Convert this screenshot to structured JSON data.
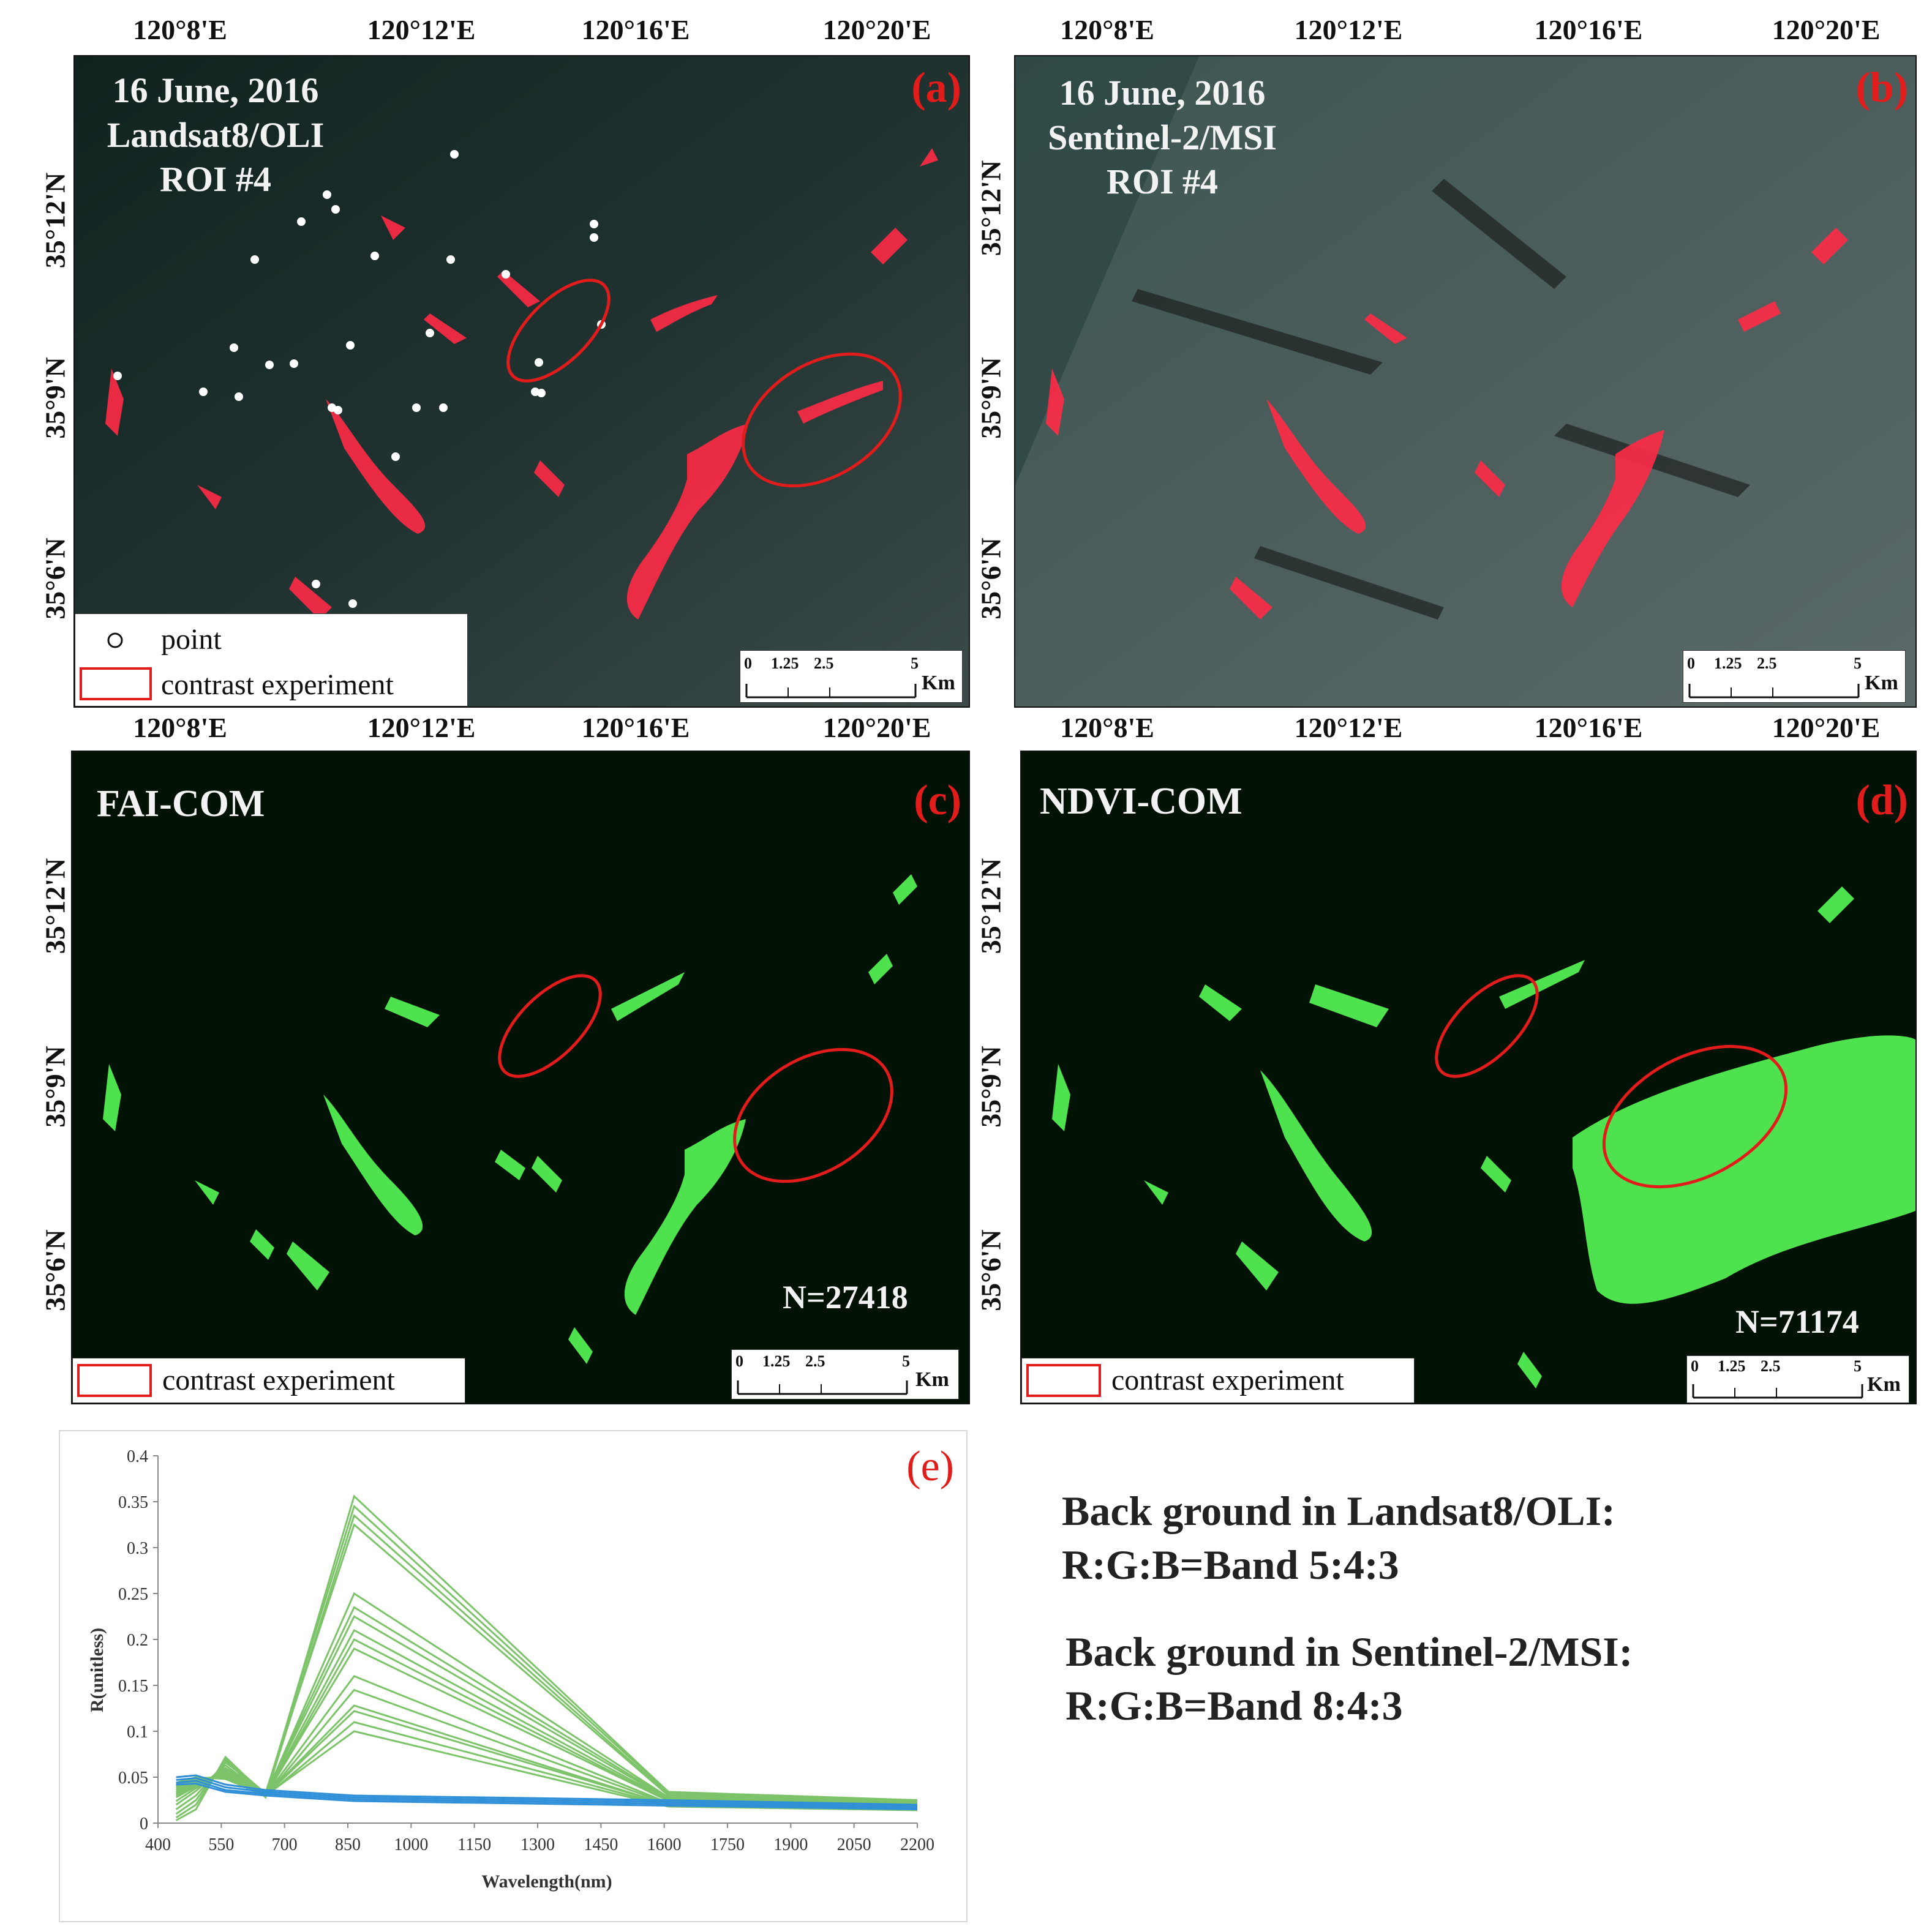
{
  "axes": {
    "lon_labels": [
      "120°8'E",
      "120°12'E",
      "120°16'E",
      "120°20'E"
    ],
    "lat_labels": [
      "35°12'N",
      "35°9'N",
      "35°6'N"
    ]
  },
  "panel_a": {
    "label": "(a)",
    "lines": [
      "16 June, 2016",
      "Landsat8/OLI",
      "ROI #4"
    ],
    "legend_point": "point",
    "legend_contrast": "contrast experiment"
  },
  "panel_b": {
    "label": "(b)",
    "lines": [
      "16 June, 2016",
      "Sentinel-2/MSI",
      "ROI #4"
    ]
  },
  "panel_c": {
    "label": "(c)",
    "title": "FAI-COM",
    "count": "N=27418",
    "legend_contrast": "contrast experiment"
  },
  "panel_d": {
    "label": "(d)",
    "title": "NDVI-COM",
    "count": "N=71174",
    "legend_contrast": "contrast experiment"
  },
  "scalebar": {
    "ticks": [
      "0",
      "1.25",
      "2.5",
      "5"
    ],
    "unit": "Km"
  },
  "colors": {
    "algae_red": "#ff2a46",
    "algae_green": "#4fe24f",
    "ellipse": "#e21b1b",
    "series_green": "#7cc36a",
    "series_blue": "#2f8fd8"
  },
  "chart_data": {
    "type": "line",
    "panel_label": "(e)",
    "xlabel": "Wavelength(nm)",
    "ylabel": "R(unitless)",
    "xlim": [
      400,
      2200
    ],
    "ylim": [
      0,
      0.4
    ],
    "x_ticks": [
      "400",
      "550",
      "700",
      "850",
      "1000",
      "1150",
      "1300",
      "1450",
      "1600",
      "1750",
      "1900",
      "2050",
      "2200"
    ],
    "y_ticks": [
      "0",
      "0.05",
      "0.1",
      "0.15",
      "0.2",
      "0.25",
      "0.3",
      "0.35",
      "0.4"
    ],
    "x": [
      443,
      490,
      560,
      655,
      865,
      1610,
      2200
    ],
    "series_green_color": "#7cc36a",
    "series_blue_color": "#2f8fd8",
    "series": [
      {
        "group": "green",
        "values": [
          0.003,
          0.015,
          0.072,
          0.03,
          0.356,
          0.034,
          0.025
        ]
      },
      {
        "group": "green",
        "values": [
          0.006,
          0.02,
          0.07,
          0.032,
          0.345,
          0.033,
          0.024
        ]
      },
      {
        "group": "green",
        "values": [
          0.01,
          0.025,
          0.068,
          0.028,
          0.335,
          0.031,
          0.023
        ]
      },
      {
        "group": "green",
        "values": [
          0.015,
          0.03,
          0.066,
          0.033,
          0.325,
          0.03,
          0.022
        ]
      },
      {
        "group": "green",
        "values": [
          0.02,
          0.035,
          0.063,
          0.03,
          0.25,
          0.028,
          0.021
        ]
      },
      {
        "group": "green",
        "values": [
          0.024,
          0.038,
          0.06,
          0.032,
          0.235,
          0.027,
          0.02
        ]
      },
      {
        "group": "green",
        "values": [
          0.028,
          0.04,
          0.058,
          0.031,
          0.225,
          0.026,
          0.019
        ]
      },
      {
        "group": "green",
        "values": [
          0.03,
          0.042,
          0.056,
          0.03,
          0.21,
          0.025,
          0.019
        ]
      },
      {
        "group": "green",
        "values": [
          0.032,
          0.044,
          0.055,
          0.029,
          0.2,
          0.024,
          0.018
        ]
      },
      {
        "group": "green",
        "values": [
          0.034,
          0.045,
          0.054,
          0.03,
          0.19,
          0.024,
          0.018
        ]
      },
      {
        "group": "green",
        "values": [
          0.036,
          0.046,
          0.053,
          0.03,
          0.16,
          0.022,
          0.017
        ]
      },
      {
        "group": "green",
        "values": [
          0.038,
          0.047,
          0.052,
          0.029,
          0.145,
          0.021,
          0.016
        ]
      },
      {
        "group": "green",
        "values": [
          0.04,
          0.048,
          0.051,
          0.03,
          0.128,
          0.02,
          0.016
        ]
      },
      {
        "group": "green",
        "values": [
          0.041,
          0.048,
          0.05,
          0.03,
          0.122,
          0.02,
          0.015
        ]
      },
      {
        "group": "green",
        "values": [
          0.042,
          0.049,
          0.049,
          0.029,
          0.11,
          0.019,
          0.015
        ]
      },
      {
        "group": "green",
        "values": [
          0.044,
          0.05,
          0.048,
          0.03,
          0.1,
          0.018,
          0.014
        ]
      },
      {
        "group": "blue",
        "values": [
          0.05,
          0.052,
          0.042,
          0.036,
          0.03,
          0.025,
          0.02
        ]
      },
      {
        "group": "blue",
        "values": [
          0.047,
          0.049,
          0.039,
          0.034,
          0.028,
          0.023,
          0.018
        ]
      },
      {
        "group": "blue",
        "values": [
          0.044,
          0.046,
          0.036,
          0.032,
          0.026,
          0.021,
          0.016
        ]
      },
      {
        "group": "blue",
        "values": [
          0.042,
          0.043,
          0.034,
          0.03,
          0.024,
          0.019,
          0.015
        ]
      }
    ]
  },
  "notes": [
    [
      "Back ground in Landsat8/OLI:",
      "R:G:B=Band 5:4:3"
    ],
    [
      "Back ground in Sentinel-2/MSI:",
      "R:G:B=Band 8:4:3"
    ]
  ]
}
